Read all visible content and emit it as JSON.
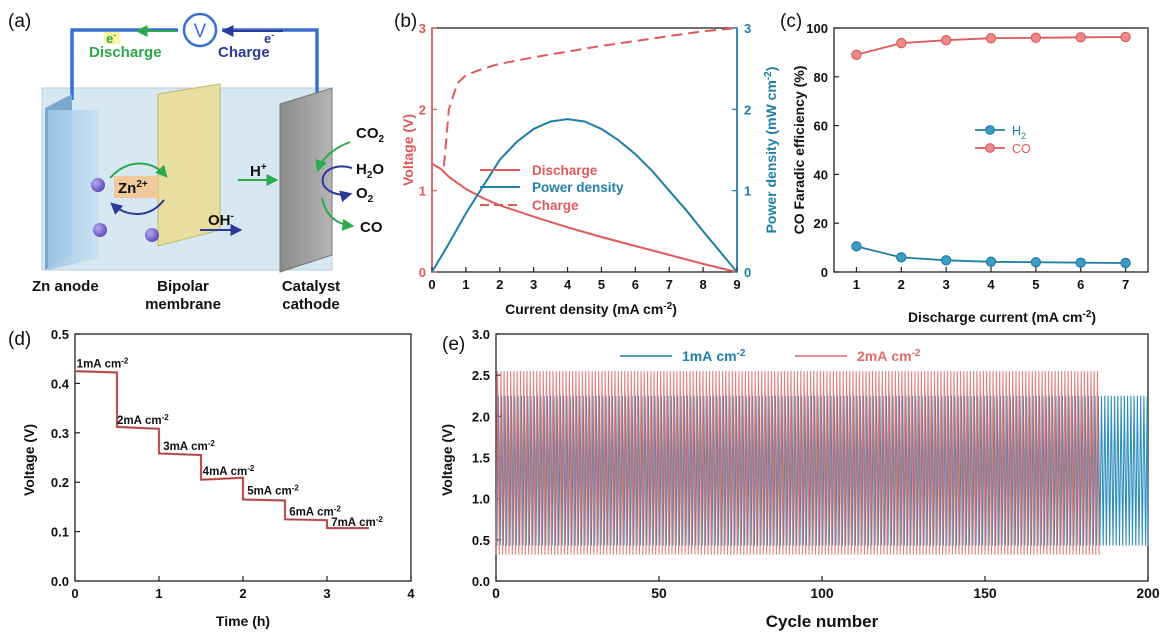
{
  "panels": {
    "a": "(a)",
    "b": "(b)",
    "c": "(c)",
    "d": "(d)",
    "e": "(e)"
  },
  "schematic": {
    "meter_symbol": "V",
    "electron": "e",
    "electron_charge": "-",
    "discharge": "Discharge",
    "charge": "Charge",
    "zn_ion": "Zn",
    "zn_charge": "2+",
    "h_plus": "H",
    "h_charge": "+",
    "oh": "OH",
    "oh_charge": "-",
    "co2": "CO",
    "co2_sub": "2",
    "h2o_h": "H",
    "h2o_sub": "2",
    "h2o_o": "O",
    "o2": "O",
    "o2_sub": "2",
    "co": "CO",
    "anode": "Zn anode",
    "membrane_line1": "Bipolar",
    "membrane_line2": "membrane",
    "cathode_line1": "Catalyst",
    "cathode_line2": "cathode"
  },
  "colors": {
    "red": "#e05a5a",
    "blue": "#1f7fa6",
    "navy": "#2a3a9c",
    "green": "#2aaa4a",
    "wire": "#3a6fcf",
    "e_red": "#e06a6a",
    "e_blue": "#2f8fbf"
  },
  "chart_data": [
    {
      "panel": "b",
      "type": "line",
      "xlabel": "Current density (mA cm",
      "xlabel_sup": "-2",
      "xlabel_end": ")",
      "ylabel": "Voltage (V)",
      "y2label": "Power density (mW cm",
      "y2label_sup": "-2",
      "y2label_end": ")",
      "xlim": [
        0,
        9
      ],
      "ylim": [
        0,
        3
      ],
      "y2lim": [
        0,
        3
      ],
      "xticks": [
        "0",
        "1",
        "2",
        "3",
        "4",
        "5",
        "6",
        "7",
        "8",
        "9"
      ],
      "yticks": [
        "0",
        "1",
        "2",
        "3"
      ],
      "y2ticks": [
        "0",
        "1",
        "2",
        "3"
      ],
      "legend": [
        "Discharge",
        "Power density",
        "Charge"
      ],
      "series": [
        {
          "name": "Discharge",
          "axis": "left",
          "style": "solid",
          "x": [
            0,
            0.25,
            0.5,
            1,
            1.5,
            2,
            3,
            4,
            5,
            6,
            7,
            8,
            8.7,
            9
          ],
          "y": [
            1.33,
            1.27,
            1.17,
            1.02,
            0.91,
            0.82,
            0.68,
            0.55,
            0.43,
            0.32,
            0.21,
            0.1,
            0.03,
            0.0
          ]
        },
        {
          "name": "Power density",
          "axis": "right",
          "style": "solid",
          "x": [
            0,
            0.5,
            1,
            1.5,
            2,
            2.5,
            3,
            3.5,
            4,
            4.5,
            5,
            5.5,
            6,
            6.5,
            7,
            7.5,
            8,
            8.5,
            9
          ],
          "y": [
            0,
            0.35,
            0.72,
            1.05,
            1.38,
            1.6,
            1.76,
            1.85,
            1.88,
            1.85,
            1.76,
            1.62,
            1.45,
            1.24,
            1.0,
            0.76,
            0.5,
            0.25,
            0.0
          ]
        },
        {
          "name": "Charge",
          "axis": "left",
          "style": "dashed",
          "x": [
            0.35,
            0.5,
            0.75,
            1,
            1.5,
            2,
            3,
            4,
            5,
            6,
            7,
            8,
            9
          ],
          "y": [
            1.3,
            2.0,
            2.32,
            2.42,
            2.5,
            2.56,
            2.64,
            2.71,
            2.78,
            2.84,
            2.9,
            2.96,
            3.0
          ]
        }
      ]
    },
    {
      "panel": "c",
      "type": "line",
      "xlabel": "Discharge current (mA cm",
      "xlabel_sup": "-2",
      "xlabel_end": ")",
      "ylabel": "CO Faradic efficiency (%)",
      "xlim": [
        0.5,
        7.5
      ],
      "ylim": [
        0,
        100
      ],
      "xticks": [
        "1",
        "2",
        "3",
        "4",
        "5",
        "6",
        "7"
      ],
      "yticks": [
        "0",
        "20",
        "40",
        "60",
        "80",
        "100"
      ],
      "series": [
        {
          "name": "H",
          "name_sub": "2",
          "x": [
            1,
            2,
            3,
            4,
            5,
            6,
            7
          ],
          "y": [
            10.5,
            6,
            4.8,
            4.2,
            4.0,
            3.8,
            3.7
          ]
        },
        {
          "name": "CO",
          "x": [
            1,
            2,
            3,
            4,
            5,
            6,
            7
          ],
          "y": [
            89,
            93.8,
            95,
            95.8,
            96,
            96.2,
            96.3
          ]
        }
      ]
    },
    {
      "panel": "d",
      "type": "line",
      "xlabel": "Time (h)",
      "ylabel": "Voltage (V)",
      "xlim": [
        0,
        4
      ],
      "ylim": [
        0,
        0.5
      ],
      "xticks": [
        "0",
        "1",
        "2",
        "3",
        "4"
      ],
      "yticks": [
        "0.0",
        "0.1",
        "0.2",
        "0.3",
        "0.4",
        "0.5"
      ],
      "label_unit": "cm",
      "label_sup": "-2",
      "steps": [
        {
          "label": "1mA",
          "t0": 0,
          "t1": 0.5,
          "v0": 0.425,
          "v1": 0.422,
          "lx": 0.02,
          "ly": 0.432
        },
        {
          "label": "2mA",
          "t0": 0.5,
          "t1": 1.0,
          "v0": 0.312,
          "v1": 0.308,
          "lx": 0.5,
          "ly": 0.318
        },
        {
          "label": "3mA",
          "t0": 1.0,
          "t1": 1.5,
          "v0": 0.258,
          "v1": 0.255,
          "lx": 1.05,
          "ly": 0.265
        },
        {
          "label": "4mA",
          "t0": 1.5,
          "t1": 2.0,
          "v0": 0.205,
          "v1": 0.209,
          "lx": 1.52,
          "ly": 0.215
        },
        {
          "label": "5mA",
          "t0": 2.0,
          "t1": 2.5,
          "v0": 0.165,
          "v1": 0.163,
          "lx": 2.05,
          "ly": 0.175
        },
        {
          "label": "6mA",
          "t0": 2.5,
          "t1": 3.0,
          "v0": 0.125,
          "v1": 0.123,
          "lx": 2.55,
          "ly": 0.133
        },
        {
          "label": "7mA",
          "t0": 3.0,
          "t1": 3.5,
          "v0": 0.107,
          "v1": 0.107,
          "lx": 3.05,
          "ly": 0.111
        }
      ]
    },
    {
      "panel": "e",
      "type": "line",
      "xlabel": "Cycle number",
      "ylabel": "Voltage (V)",
      "xlim": [
        0,
        200
      ],
      "ylim": [
        0,
        3.0
      ],
      "xticks": [
        "0",
        "50",
        "100",
        "150",
        "200"
      ],
      "yticks": [
        "0.0",
        "0.5",
        "1.0",
        "1.5",
        "2.0",
        "2.5",
        "3.0"
      ],
      "legend_unit": "cm",
      "legend_sup": "-2",
      "series": [
        {
          "name": "1mA",
          "cycles": 200,
          "high": 2.25,
          "low": 0.43
        },
        {
          "name": "2mA",
          "cycles": 185,
          "high": 2.55,
          "low": 0.32
        }
      ]
    }
  ]
}
